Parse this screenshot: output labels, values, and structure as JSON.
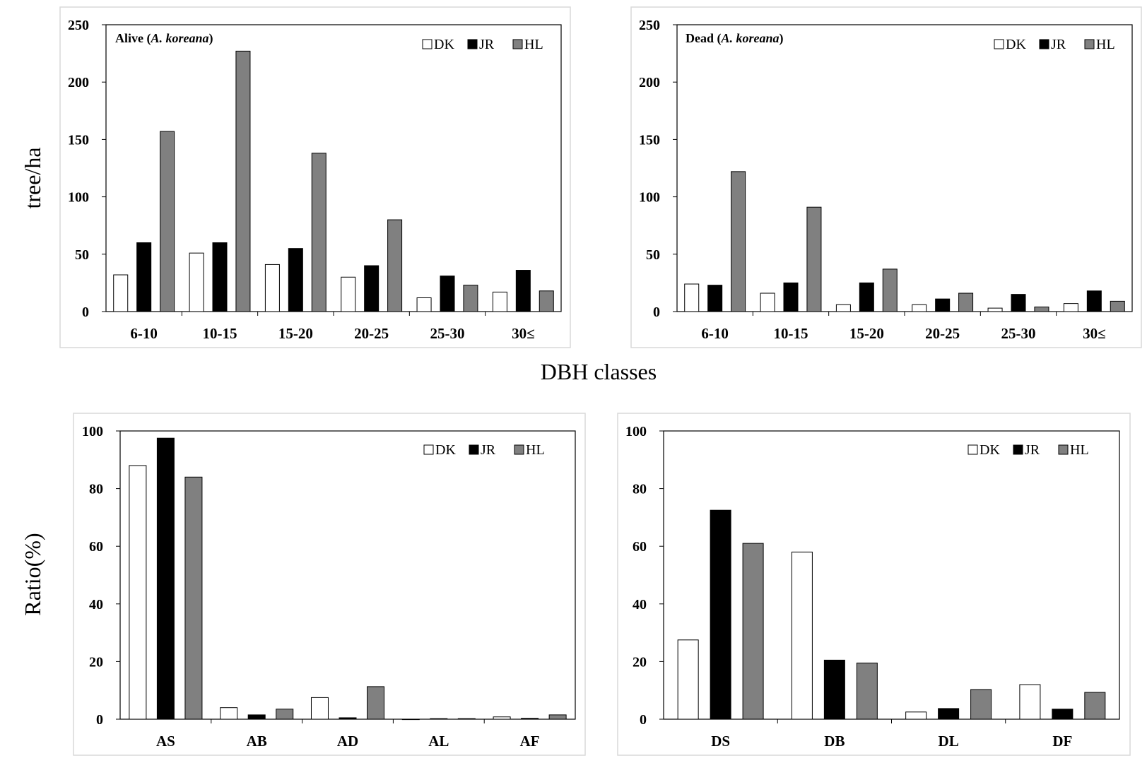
{
  "figure": {
    "y_label_top": "tree/ha",
    "x_label_top": "DBH classes",
    "y_label_bottom": "Ratio(%)"
  },
  "colors": {
    "DK": "#ffffff",
    "JR": "#000000",
    "HL": "#808080",
    "frame": "#d9d9d9",
    "axis": "#000000"
  },
  "chart_data": [
    {
      "type": "bar",
      "title_main": "Alive (",
      "title_species": "A. koreana",
      "title_end": ")",
      "categories": [
        "6-10",
        "10-15",
        "15-20",
        "20-25",
        "25-30",
        "30≤"
      ],
      "series": [
        {
          "name": "DK",
          "values": [
            32,
            51,
            41,
            30,
            12,
            17
          ]
        },
        {
          "name": "JR",
          "values": [
            60,
            60,
            55,
            40,
            31,
            36
          ]
        },
        {
          "name": "HL",
          "values": [
            157,
            227,
            138,
            80,
            23,
            18
          ]
        }
      ],
      "ylim": [
        0,
        250
      ],
      "yticks": [
        0,
        50,
        100,
        150,
        200,
        250
      ],
      "legend": "top-right",
      "grid": false
    },
    {
      "type": "bar",
      "title_main": "Dead (",
      "title_species": "A. koreana",
      "title_end": ")",
      "categories": [
        "6-10",
        "10-15",
        "15-20",
        "20-25",
        "25-30",
        "30≤"
      ],
      "series": [
        {
          "name": "DK",
          "values": [
            24,
            16,
            6,
            6,
            3,
            7
          ]
        },
        {
          "name": "JR",
          "values": [
            23,
            25,
            25,
            11,
            15,
            18
          ]
        },
        {
          "name": "HL",
          "values": [
            122,
            91,
            37,
            16,
            4,
            9
          ]
        }
      ],
      "ylim": [
        0,
        250
      ],
      "yticks": [
        0,
        50,
        100,
        150,
        200,
        250
      ],
      "legend": "top-right",
      "grid": false
    },
    {
      "type": "bar",
      "categories": [
        "AS",
        "AB",
        "AD",
        "AL",
        "AF"
      ],
      "series": [
        {
          "name": "DK",
          "values": [
            88,
            4,
            7.5,
            0,
            0.8
          ]
        },
        {
          "name": "JR",
          "values": [
            97.5,
            1.5,
            0.5,
            0.2,
            0.3
          ]
        },
        {
          "name": "HL",
          "values": [
            84,
            3.5,
            11.3,
            0.2,
            1.5
          ]
        }
      ],
      "ylim": [
        0,
        100
      ],
      "yticks": [
        0,
        20,
        40,
        60,
        80,
        100
      ],
      "legend": "top-right",
      "grid": false
    },
    {
      "type": "bar",
      "categories": [
        "DS",
        "DB",
        "DL",
        "DF"
      ],
      "series": [
        {
          "name": "DK",
          "values": [
            27.5,
            58,
            2.5,
            12
          ]
        },
        {
          "name": "JR",
          "values": [
            72.5,
            20.5,
            3.7,
            3.5
          ]
        },
        {
          "name": "HL",
          "values": [
            61,
            19.5,
            10.3,
            9.3
          ]
        }
      ],
      "ylim": [
        0,
        100
      ],
      "yticks": [
        0,
        20,
        40,
        60,
        80,
        100
      ],
      "legend": "top-right",
      "grid": false
    }
  ]
}
